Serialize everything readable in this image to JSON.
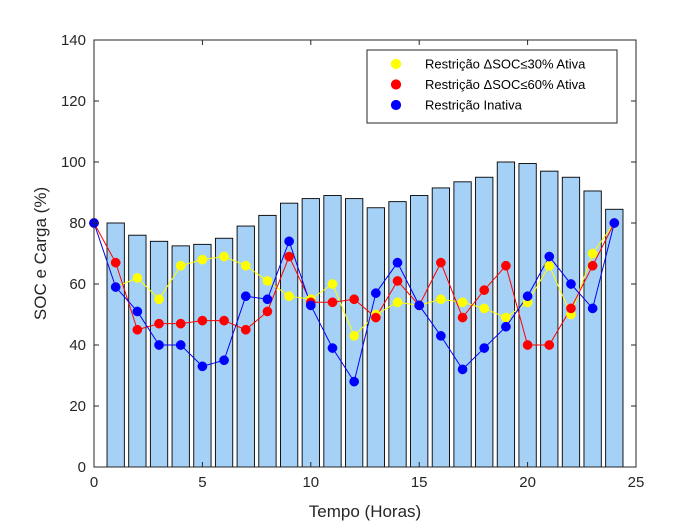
{
  "chart_data": {
    "type": "bar+line",
    "xlabel": "Tempo (Horas)",
    "ylabel": "SOC e Carga (%)",
    "xlim": [
      0,
      25
    ],
    "ylim": [
      0,
      140
    ],
    "xticks": [
      0,
      5,
      10,
      15,
      20,
      25
    ],
    "yticks": [
      0,
      20,
      40,
      60,
      80,
      100,
      120,
      140
    ],
    "grid": false,
    "legend_position": "top-right",
    "bars": {
      "color": "#a6d1f7",
      "x": [
        1,
        2,
        3,
        4,
        5,
        6,
        7,
        8,
        9,
        10,
        11,
        12,
        13,
        14,
        15,
        16,
        17,
        18,
        19,
        20,
        21,
        22,
        23,
        24
      ],
      "values": [
        80,
        76,
        74,
        72.5,
        73,
        75,
        79,
        82.5,
        86.5,
        88,
        89,
        88,
        85,
        87,
        89,
        91.5,
        93.5,
        95,
        100,
        99.5,
        97,
        95,
        90.5,
        84.5
      ]
    },
    "series": [
      {
        "name": "Restrição ΔSOC≤30% Ativa",
        "color": "#ffff00",
        "x": [
          0,
          1,
          2,
          3,
          4,
          5,
          6,
          7,
          8,
          9,
          10,
          11,
          12,
          13,
          14,
          15,
          16,
          17,
          18,
          19,
          20,
          21,
          22,
          23,
          24
        ],
        "values": [
          80,
          59,
          62,
          55,
          66,
          68,
          69,
          66,
          61,
          56,
          55,
          60,
          43,
          50,
          54,
          53,
          55,
          54,
          52,
          49,
          54,
          66,
          50,
          70,
          80
        ]
      },
      {
        "name": "Restrição ΔSOC≤60% Ativa",
        "color": "#ff0000",
        "x": [
          0,
          1,
          2,
          3,
          4,
          5,
          6,
          7,
          8,
          9,
          10,
          11,
          12,
          13,
          14,
          15,
          16,
          17,
          18,
          19,
          20,
          21,
          22,
          23,
          24
        ],
        "values": [
          80,
          67,
          45,
          47,
          47,
          48,
          48,
          45,
          51,
          69,
          54,
          54,
          55,
          49,
          61,
          53,
          67,
          49,
          58,
          66,
          40,
          40,
          52,
          66,
          80
        ]
      },
      {
        "name": "Restrição Inativa",
        "color": "#0000ff",
        "x": [
          0,
          1,
          2,
          3,
          4,
          5,
          6,
          7,
          8,
          9,
          10,
          11,
          12,
          13,
          14,
          15,
          16,
          17,
          18,
          19,
          20,
          21,
          22,
          23,
          24
        ],
        "values": [
          80,
          59,
          51,
          40,
          40,
          33,
          35,
          56,
          55,
          74,
          53,
          39,
          28,
          57,
          67,
          53,
          43,
          32,
          39,
          46,
          56,
          69,
          60,
          52,
          80
        ]
      }
    ]
  }
}
